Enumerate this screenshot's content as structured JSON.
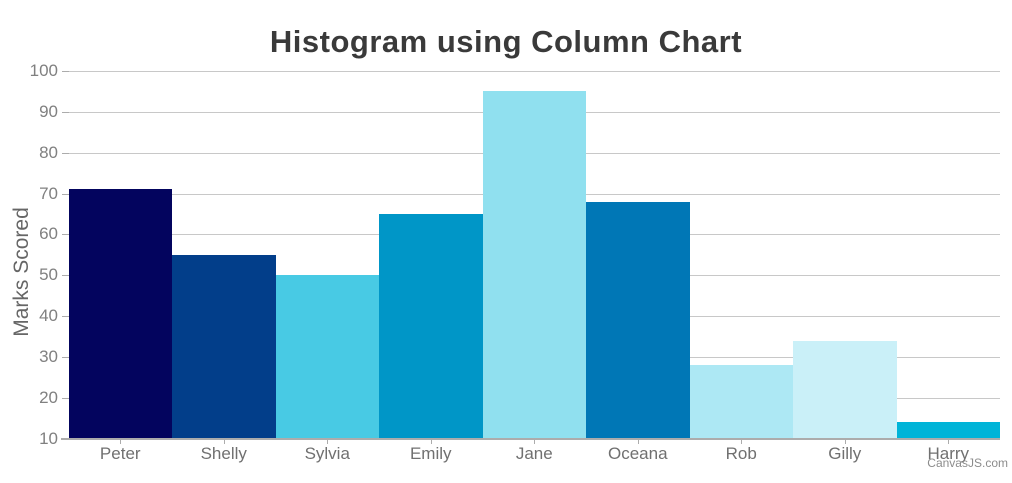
{
  "chart": {
    "watermark": "CanvasJS.com"
  },
  "chart_data": {
    "type": "bar",
    "subtype": "histogram-column",
    "title": "Histogram using Column Chart",
    "xlabel": "",
    "ylabel": "Marks Scored",
    "categories": [
      "Peter",
      "Shelly",
      "Sylvia",
      "Emily",
      "Jane",
      "Oceana",
      "Rob",
      "Gilly",
      "Harry"
    ],
    "values": [
      71,
      55,
      50,
      65,
      95,
      68,
      28,
      34,
      14
    ],
    "bar_colors": [
      "#03045E",
      "#023E8A",
      "#48CAE4",
      "#0096C7",
      "#90E0EF",
      "#0077B6",
      "#ADE8F4",
      "#CAF0F8",
      "#00B4D8"
    ],
    "ylim": [
      10,
      100
    ],
    "ytick_step": 10,
    "yticks": [
      10,
      20,
      30,
      40,
      50,
      60,
      70,
      80,
      90,
      100
    ],
    "grid": true,
    "legend_position": "none",
    "style": {
      "background": "#FFFFFF",
      "title_color": "#3A3A3A",
      "axis_title_color": "#666666",
      "ytick_label_color": "#808080",
      "xtick_label_color": "#707070",
      "gridline_color": "#C8C8C8",
      "axis_line_color": "#ACACAC",
      "tick_mark_color": "#ACACAC",
      "watermark_color": "#8C8C8C"
    }
  }
}
